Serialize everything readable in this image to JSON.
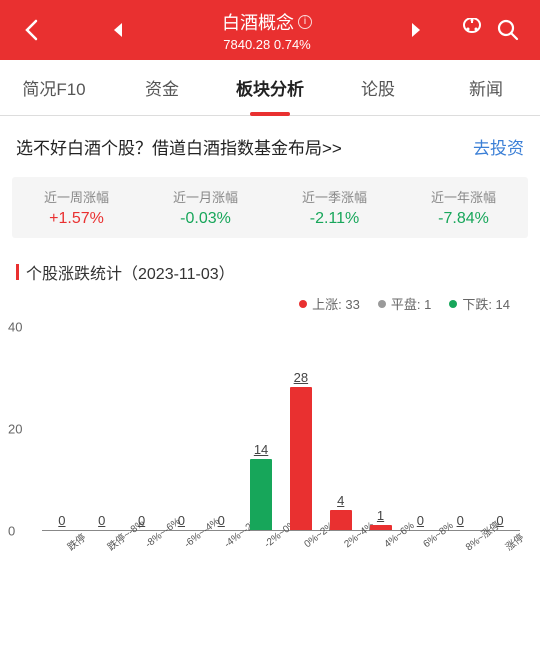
{
  "header": {
    "title": "白酒概念",
    "price": "7840.28",
    "change": "0.74%"
  },
  "tabs": [
    {
      "label": "简况F10",
      "active": false
    },
    {
      "label": "资金",
      "active": false
    },
    {
      "label": "板块分析",
      "active": true
    },
    {
      "label": "论股",
      "active": false
    },
    {
      "label": "新闻",
      "active": false
    }
  ],
  "banner": {
    "left": "选不好白酒个股？借道白酒指数基金布局>>",
    "right": "去投资"
  },
  "stats": [
    {
      "label": "近一周涨幅",
      "value": "+1.57%",
      "dir": "up"
    },
    {
      "label": "近一月涨幅",
      "value": "-0.03%",
      "dir": "down"
    },
    {
      "label": "近一季涨幅",
      "value": "-2.11%",
      "dir": "down"
    },
    {
      "label": "近一年涨幅",
      "value": "-7.84%",
      "dir": "down"
    }
  ],
  "section": {
    "title": "个股涨跌统计（2023-11-03）"
  },
  "legend": {
    "up": {
      "label": "上涨: 33",
      "color": "#e93030"
    },
    "flat": {
      "label": "平盘: 1",
      "color": "#9a9a9a"
    },
    "down": {
      "label": "下跌: 14",
      "color": "#17a65a"
    }
  },
  "chart": {
    "type": "bar",
    "ymax": 40,
    "yticks": [
      0,
      20,
      40
    ],
    "colors": {
      "up": "#e93030",
      "down": "#17a65a"
    },
    "bars": [
      {
        "label": "跌停",
        "value": 0,
        "dir": "down"
      },
      {
        "label": "跌停~-8%",
        "value": 0,
        "dir": "down"
      },
      {
        "label": "-8%~-6%",
        "value": 0,
        "dir": "down"
      },
      {
        "label": "-6%~-4%",
        "value": 0,
        "dir": "down"
      },
      {
        "label": "-4%~-2%",
        "value": 0,
        "dir": "down"
      },
      {
        "label": "-2%~0%",
        "value": 14,
        "dir": "down"
      },
      {
        "label": "0%~2%",
        "value": 28,
        "dir": "up"
      },
      {
        "label": "2%~4%",
        "value": 4,
        "dir": "up"
      },
      {
        "label": "4%~6%",
        "value": 1,
        "dir": "up"
      },
      {
        "label": "6%~8%",
        "value": 0,
        "dir": "up"
      },
      {
        "label": "8%~涨停",
        "value": 0,
        "dir": "up"
      },
      {
        "label": "涨停",
        "value": 0,
        "dir": "up"
      }
    ]
  }
}
